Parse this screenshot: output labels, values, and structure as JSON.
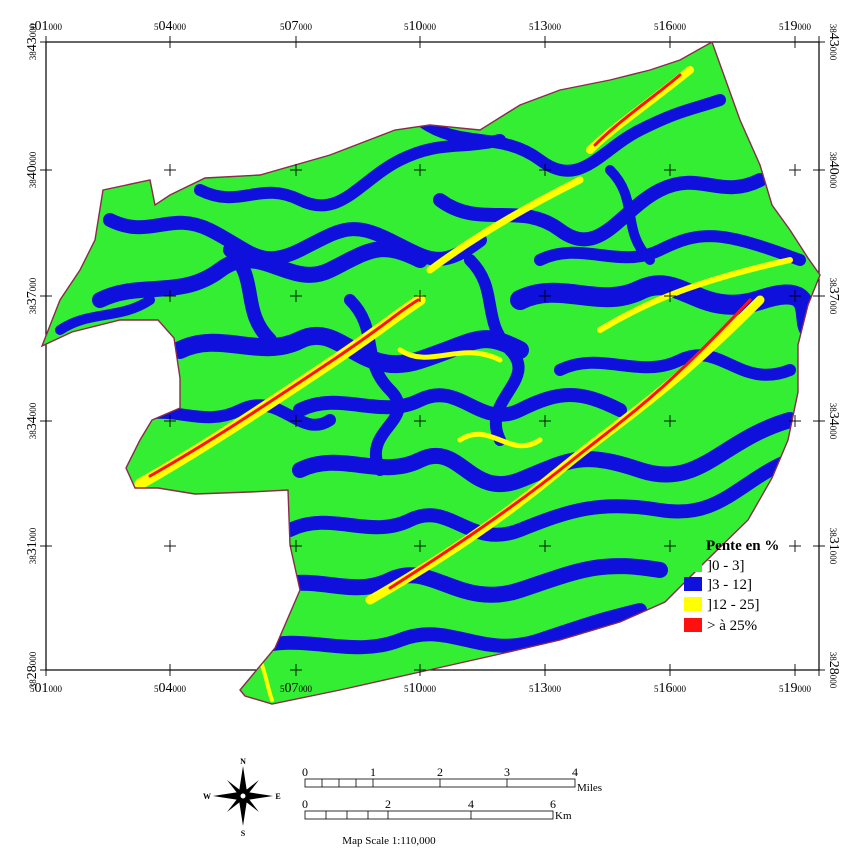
{
  "top_axis": [
    {
      "main": "5",
      "major": "01",
      "minor": "000"
    },
    {
      "main": "5",
      "major": "04",
      "minor": "000"
    },
    {
      "main": "5",
      "major": "07",
      "minor": "000"
    },
    {
      "main": "5",
      "major": "10",
      "minor": "000"
    },
    {
      "main": "5",
      "major": "13",
      "minor": "000"
    },
    {
      "main": "5",
      "major": "16",
      "minor": "000"
    },
    {
      "main": "5",
      "major": "19",
      "minor": "000"
    }
  ],
  "bottom_axis": [
    {
      "main": "5",
      "major": "01",
      "minor": "000"
    },
    {
      "main": "5",
      "major": "04",
      "minor": "000"
    },
    {
      "main": "5",
      "major": "07",
      "minor": "000"
    },
    {
      "main": "5",
      "major": "10",
      "minor": "000"
    },
    {
      "main": "5",
      "major": "13",
      "minor": "000"
    },
    {
      "main": "5",
      "major": "16",
      "minor": "000"
    },
    {
      "main": "5",
      "major": "19",
      "minor": "000"
    }
  ],
  "left_axis": [
    {
      "main": "38",
      "major": "43",
      "minor": "000"
    },
    {
      "main": "38",
      "major": "40",
      "minor": "000"
    },
    {
      "main": "38",
      "major": "37",
      "minor": "000"
    },
    {
      "main": "38",
      "major": "34",
      "minor": "000"
    },
    {
      "main": "38",
      "major": "31",
      "minor": "000"
    },
    {
      "main": "38",
      "major": "28",
      "minor": "000"
    }
  ],
  "right_axis": [
    {
      "main": "38",
      "major": "43",
      "minor": "000"
    },
    {
      "main": "38",
      "major": "40",
      "minor": "000"
    },
    {
      "main": "38",
      "major": "37",
      "minor": "000"
    },
    {
      "main": "38",
      "major": "34",
      "minor": "000"
    },
    {
      "main": "38",
      "major": "31",
      "minor": "000"
    },
    {
      "main": "38",
      "major": "28",
      "minor": "000"
    }
  ],
  "legend": {
    "title": "Pente en %",
    "items": [
      {
        "label": "]0 - 3]",
        "color": "#33ee33"
      },
      {
        "label": "]3 - 12]",
        "color": "#1010dd"
      },
      {
        "label": "]12 - 25]",
        "color": "#ffff00"
      },
      {
        "label": "> à 25%",
        "color": "#ff1010"
      }
    ]
  },
  "scale": {
    "miles_label": "Miles",
    "km_label": "Km",
    "miles_ticks": [
      "0",
      "1",
      "2",
      "3",
      "4"
    ],
    "km_ticks": [
      "0",
      "2",
      "4",
      "6"
    ],
    "scale_text": "Map Scale 1:110,000"
  },
  "north_arrow": {
    "n": "N",
    "s": "S",
    "e": "E",
    "w": "W"
  },
  "colors": {
    "flat": "#33ee33",
    "gentle": "#1010dd",
    "moderate": "#ffff00",
    "steep": "#ff1010",
    "boundary": "#8b2a4a"
  }
}
